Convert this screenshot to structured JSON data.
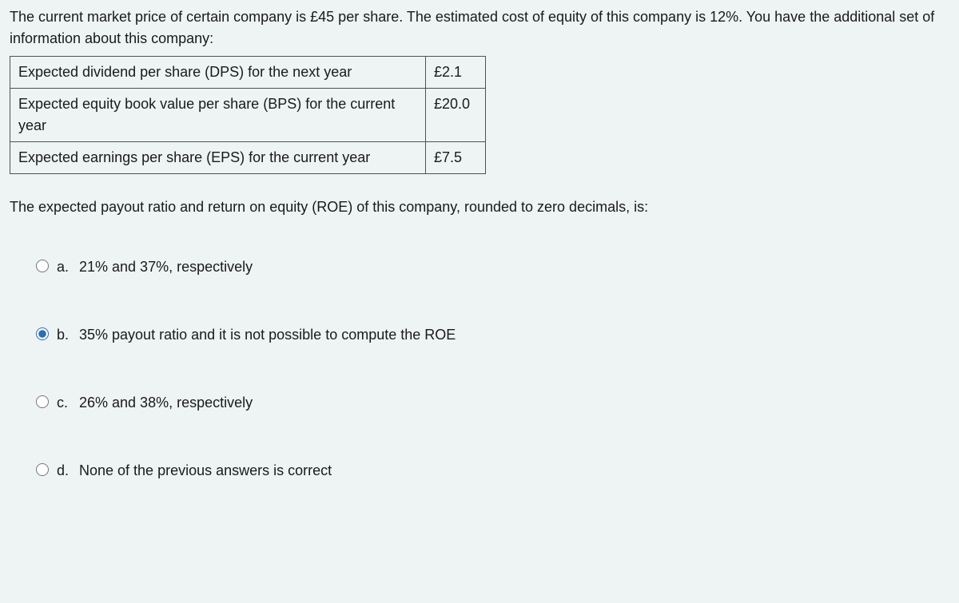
{
  "intro": "The current market price of certain company is £45 per share. The estimated cost of equity of this company is 12%. You have the additional set of information about this company:",
  "table": {
    "rows": [
      {
        "label": "Expected dividend per share (DPS) for the next year",
        "value": "£2.1"
      },
      {
        "label": "Expected equity book value per share (BPS) for the current year",
        "value": "£20.0"
      },
      {
        "label": "Expected earnings per share (EPS) for the current year",
        "value": "£7.5"
      }
    ]
  },
  "question": "The expected payout ratio and return on equity (ROE) of this company, rounded to zero decimals, is:",
  "options": [
    {
      "letter": "a.",
      "text": "21% and 37%, respectively",
      "selected": false
    },
    {
      "letter": "b.",
      "text": "35% payout ratio and it is not possible to compute the ROE",
      "selected": true
    },
    {
      "letter": "c.",
      "text": "26% and 38%, respectively",
      "selected": false
    },
    {
      "letter": "d.",
      "text": "None of the previous answers is correct",
      "selected": false
    }
  ]
}
